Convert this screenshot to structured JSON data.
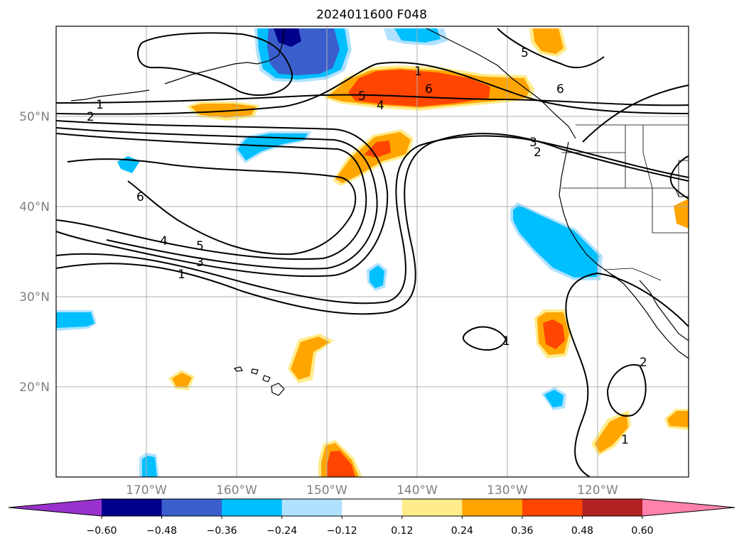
{
  "title": "2024011600 F048",
  "latitude_labels": [
    "50°N",
    "40°N",
    "30°N",
    "20°N"
  ],
  "longitude_labels": [
    "170°W",
    "160°W",
    "150°W",
    "140°W",
    "130°W",
    "120°W"
  ],
  "colorbar": {
    "tick_labels": [
      "−0.60",
      "−0.48",
      "−0.36",
      "−0.24",
      "−0.12",
      "0.12",
      "0.24",
      "0.36",
      "0.48",
      "0.60"
    ],
    "levels": [
      -0.6,
      -0.48,
      -0.36,
      -0.24,
      -0.12,
      0.12,
      0.24,
      0.36,
      0.48,
      0.6
    ],
    "colors": [
      "#9932CC",
      "#00008B",
      "#3A5FCD",
      "#00BFFF",
      "#B0E2FF",
      "#FFFFFF",
      "#FFEC8B",
      "#FFA500",
      "#FF4500",
      "#B22222",
      "#FF82AB"
    ],
    "extend": "both"
  },
  "contour_labels": [
    "1",
    "2",
    "6",
    "4",
    "5",
    "3",
    "1",
    "5",
    "4",
    "6",
    "1",
    "5",
    "6",
    "3",
    "2",
    "1",
    "2",
    "1"
  ],
  "map": {
    "projection": "PlateCarree",
    "lon_range": [
      -180,
      -110
    ],
    "lat_range": [
      10,
      60
    ],
    "gridlines": true,
    "coastlines": true,
    "borders": true,
    "shaded_field_colors": {
      "neg_strong": "#3A5FCD",
      "neg_mid": "#00BFFF",
      "neg_weak": "#B0E2FF",
      "pos_weak": "#FFEC8B",
      "pos_mid": "#FFA500",
      "pos_strong": "#FF4500",
      "neg_extreme": "#00008B"
    }
  }
}
